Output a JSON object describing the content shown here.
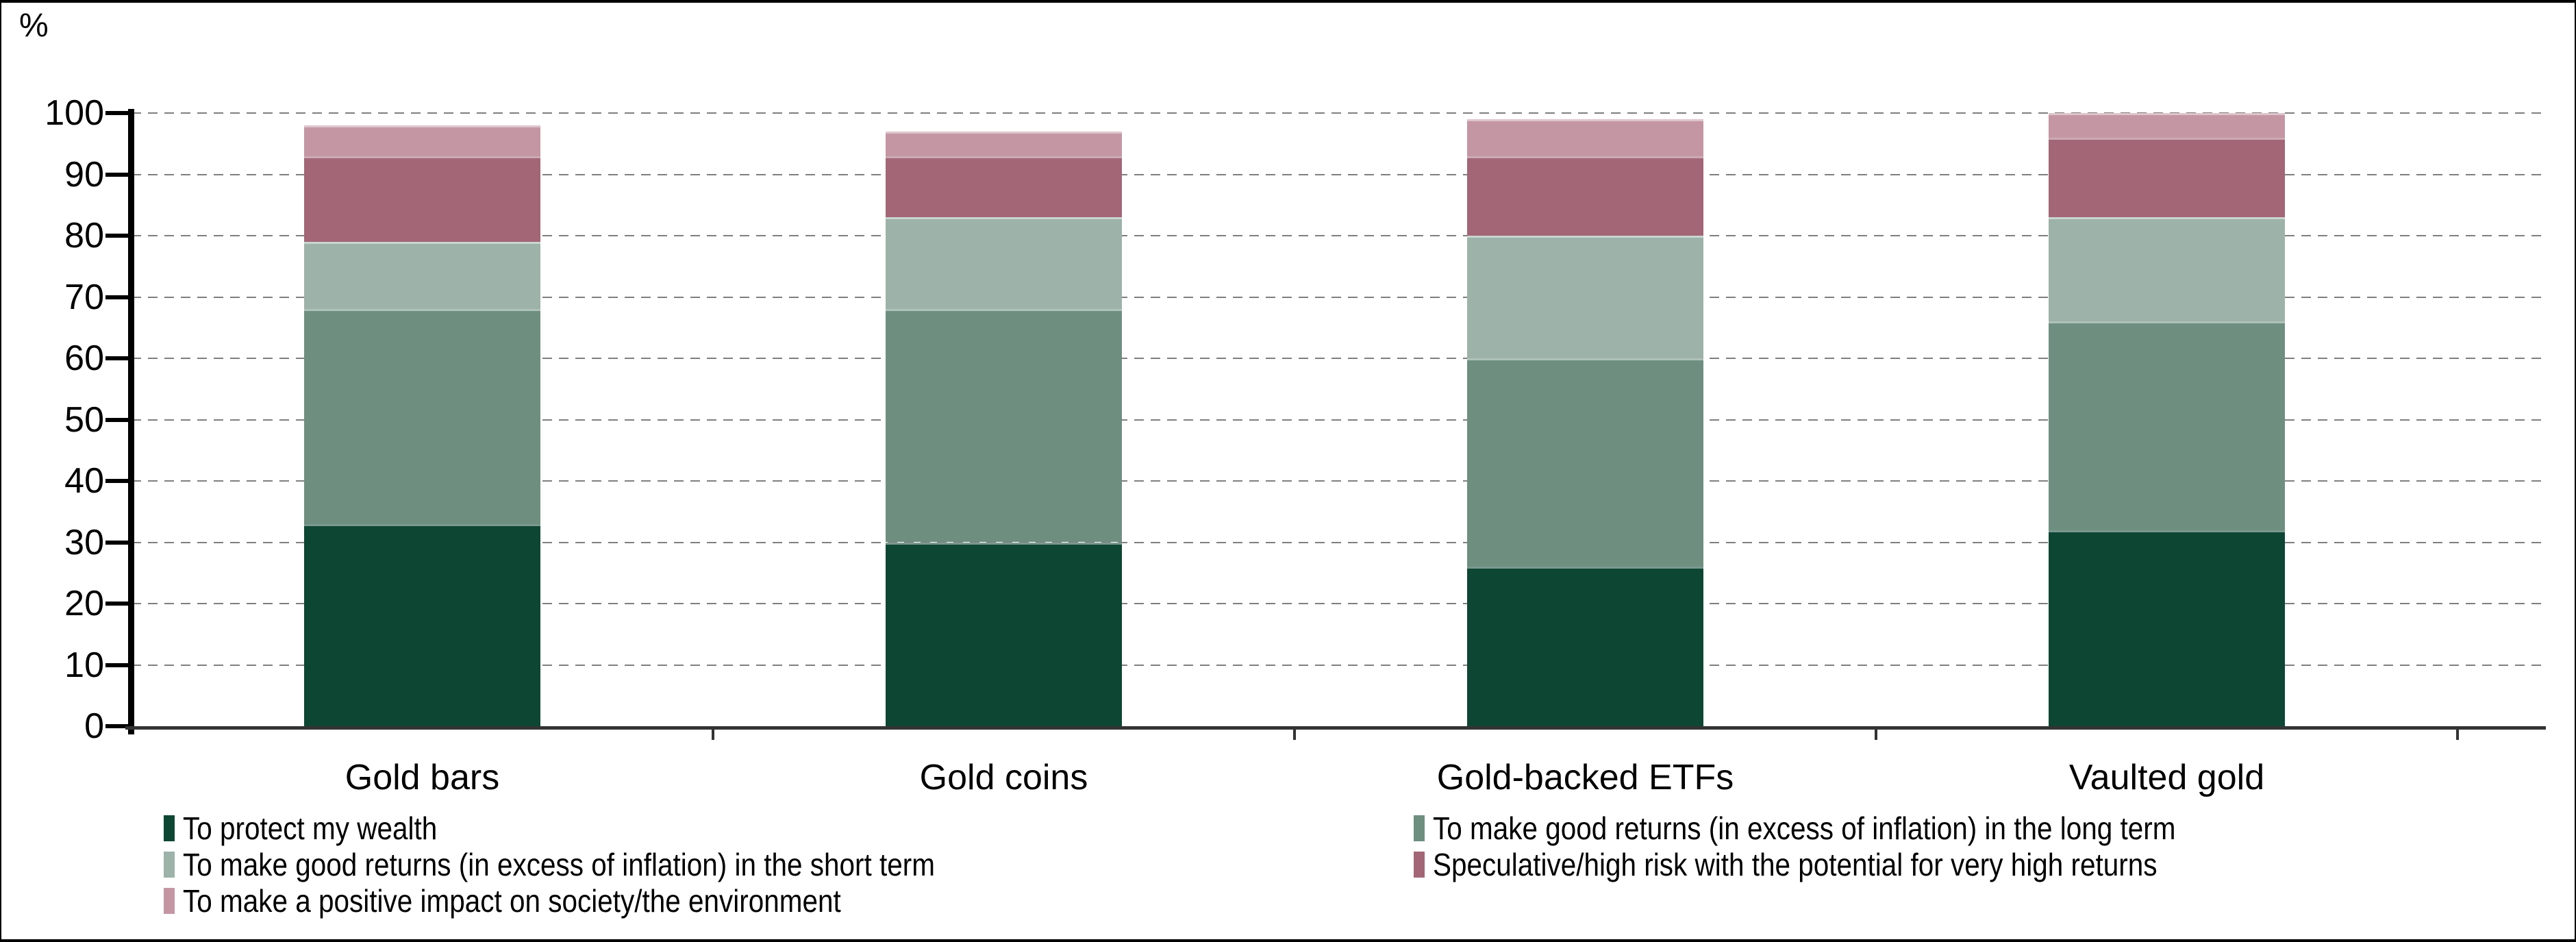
{
  "chart_data": {
    "type": "bar",
    "subtype": "stacked-column",
    "title": "",
    "unit_label": "%",
    "xlabel": "",
    "ylabel": "%",
    "ylim": [
      0,
      100
    ],
    "ytick_step": 10,
    "ytick_labels": [
      "0",
      "10",
      "20",
      "30",
      "40",
      "50",
      "60",
      "70",
      "80",
      "90",
      "100"
    ],
    "grid": "horizontal-dashed",
    "legend_position": "bottom-two-columns",
    "categories": [
      "Gold bars",
      "Gold coins",
      "Gold-backed ETFs",
      "Vaulted gold"
    ],
    "series": [
      {
        "name": "To protect my wealth",
        "color": "#0E4634",
        "values": [
          33,
          30,
          26,
          32
        ]
      },
      {
        "name": "To make good returns (in excess of inflation) in the long term",
        "color": "#6E8F80",
        "values": [
          35,
          38,
          34,
          34
        ]
      },
      {
        "name": "To make good returns (in excess of inflation) in the short term",
        "color": "#9DB2A9",
        "values": [
          11,
          15,
          20,
          17
        ]
      },
      {
        "name": "Speculative/high risk with the potential for very high returns",
        "color": "#A36676",
        "values": [
          14,
          10,
          13,
          13
        ]
      },
      {
        "name": "To make a positive impact on society/the environment",
        "color": "#C496A4",
        "values": [
          5,
          4,
          6,
          4
        ]
      }
    ],
    "stack_totals": [
      98,
      97,
      99,
      100
    ],
    "legend_columns": [
      [
        0,
        2,
        4
      ],
      [
        1,
        3
      ]
    ]
  }
}
